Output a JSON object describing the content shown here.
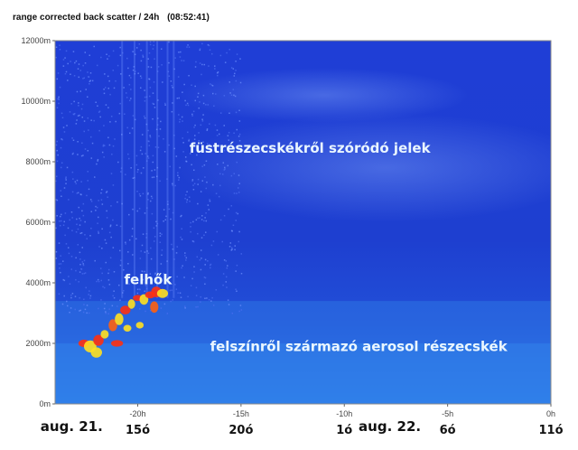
{
  "title": "range corrected back scatter / 24h",
  "time_label": "(08:52:41)",
  "colors": {
    "background": "#1f3fd0",
    "noise": "#5a80ff",
    "aerosol": "#2f7ae8",
    "cloud_hot": "#ff3010",
    "cloud_warm": "#ffe020",
    "annotation": "#eaf6ff"
  },
  "chart_data": {
    "type": "heatmap",
    "title": "range corrected back scatter / 24h",
    "xlabel": "",
    "ylabel": "",
    "xlim": [
      -24,
      0
    ],
    "ylim": [
      0,
      12000
    ],
    "y_ticks": [
      {
        "value": 0,
        "label": "0m"
      },
      {
        "value": 2000,
        "label": "2000m"
      },
      {
        "value": 4000,
        "label": "4000m"
      },
      {
        "value": 6000,
        "label": "6000m"
      },
      {
        "value": 8000,
        "label": "8000m"
      },
      {
        "value": 10000,
        "label": "10000m"
      },
      {
        "value": 12000,
        "label": "12000m"
      }
    ],
    "x_ticks": [
      {
        "value": -20,
        "label": "-20h"
      },
      {
        "value": -15,
        "label": "-15h"
      },
      {
        "value": -10,
        "label": "-10h"
      },
      {
        "value": -5,
        "label": "-5h"
      },
      {
        "value": 0,
        "label": "0h"
      }
    ],
    "hour_labels": [
      {
        "value": -20,
        "label": "15ó"
      },
      {
        "value": -15,
        "label": "20ó"
      },
      {
        "value": -10,
        "label": "1ó"
      },
      {
        "value": -5,
        "label": "6ó"
      },
      {
        "value": 0,
        "label": "11ó"
      }
    ],
    "date_labels": [
      {
        "value": -23.2,
        "label": "aug. 21."
      },
      {
        "value": -7.8,
        "label": "aug. 22."
      }
    ],
    "annotations": [
      {
        "x": -19.5,
        "y": 3950,
        "text": "felhők"
      },
      {
        "x": -17.5,
        "y": 8300,
        "text": "füstrészecskékről szóródó jelek"
      },
      {
        "x": -16.5,
        "y": 1750,
        "text": "felszínről származó aerosol részecskék"
      }
    ]
  }
}
